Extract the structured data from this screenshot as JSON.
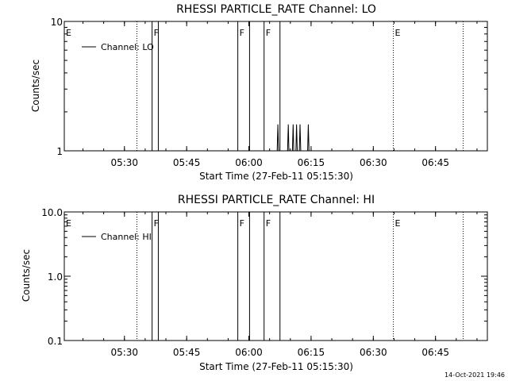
{
  "footer": {
    "timestamp": "14-Oct-2021 19:46"
  },
  "chart_data": [
    {
      "type": "line",
      "title": "RHESSI PARTICLE_RATE Channel: LO",
      "xlabel": "Start Time (27-Feb-11 05:15:30)",
      "ylabel": "Counts/sec",
      "y_scale": "log",
      "ylim": [
        1,
        10
      ],
      "xlim": [
        "05:15:30",
        "06:57:30"
      ],
      "x_ticks": [
        "05:30",
        "05:45",
        "06:00",
        "06:15",
        "06:30",
        "06:45"
      ],
      "y_ticks": [
        "1",
        "10"
      ],
      "legend": {
        "placement": "top-left",
        "entries": [
          "Channel: LO"
        ]
      },
      "event_markers": [
        {
          "label": "E",
          "x": "05:15:30",
          "style": "solid"
        },
        {
          "label": "",
          "x": "05:33:00",
          "style": "dotted"
        },
        {
          "label": "F",
          "x": "05:36:40",
          "style": "solid"
        },
        {
          "label": "",
          "x": "05:38:10",
          "style": "solid"
        },
        {
          "label": "F",
          "x": "05:57:20",
          "style": "solid"
        },
        {
          "label": "",
          "x": "06:00:10",
          "style": "solid"
        },
        {
          "label": "F",
          "x": "06:03:40",
          "style": "solid"
        },
        {
          "label": "",
          "x": "06:07:30",
          "style": "solid"
        },
        {
          "label": "E",
          "x": "06:34:50",
          "style": "dotted"
        },
        {
          "label": "",
          "x": "06:51:40",
          "style": "dotted"
        }
      ],
      "series": [
        {
          "name": "Channel: LO",
          "points": [
            [
              "06:06:50",
              1
            ],
            [
              "06:07:00",
              1.6
            ],
            [
              "06:07:10",
              1
            ],
            [
              "06:09:20",
              1
            ],
            [
              "06:09:30",
              1.6
            ],
            [
              "06:09:40",
              1
            ],
            [
              "06:10:30",
              1
            ],
            [
              "06:10:40",
              1.6
            ],
            [
              "06:10:50",
              1
            ],
            [
              "06:11:20",
              1
            ],
            [
              "06:11:30",
              1.6
            ],
            [
              "06:11:40",
              1
            ],
            [
              "06:12:10",
              1
            ],
            [
              "06:12:20",
              1.6
            ],
            [
              "06:12:30",
              1
            ],
            [
              "06:14:10",
              1
            ],
            [
              "06:14:20",
              1.6
            ],
            [
              "06:14:30",
              1
            ]
          ]
        }
      ]
    },
    {
      "type": "line",
      "title": "RHESSI PARTICLE_RATE Channel: HI",
      "xlabel": "Start Time (27-Feb-11 05:15:30)",
      "ylabel": "Counts/sec",
      "y_scale": "log",
      "ylim": [
        0.1,
        10
      ],
      "xlim": [
        "05:15:30",
        "06:57:30"
      ],
      "x_ticks": [
        "05:30",
        "05:45",
        "06:00",
        "06:15",
        "06:30",
        "06:45"
      ],
      "y_ticks": [
        "0.1",
        "1.0",
        "10.0"
      ],
      "legend": {
        "placement": "top-left",
        "entries": [
          "Channel: HI"
        ]
      },
      "event_markers": [
        {
          "label": "E",
          "x": "05:15:30",
          "style": "solid"
        },
        {
          "label": "",
          "x": "05:33:00",
          "style": "dotted"
        },
        {
          "label": "F",
          "x": "05:36:40",
          "style": "solid"
        },
        {
          "label": "",
          "x": "05:38:10",
          "style": "solid"
        },
        {
          "label": "F",
          "x": "05:57:20",
          "style": "solid"
        },
        {
          "label": "",
          "x": "06:00:10",
          "style": "solid"
        },
        {
          "label": "F",
          "x": "06:03:40",
          "style": "solid"
        },
        {
          "label": "",
          "x": "06:07:30",
          "style": "solid"
        },
        {
          "label": "E",
          "x": "06:34:50",
          "style": "dotted"
        },
        {
          "label": "",
          "x": "06:51:40",
          "style": "dotted"
        }
      ],
      "series": [
        {
          "name": "Channel: HI",
          "points": []
        }
      ]
    }
  ]
}
